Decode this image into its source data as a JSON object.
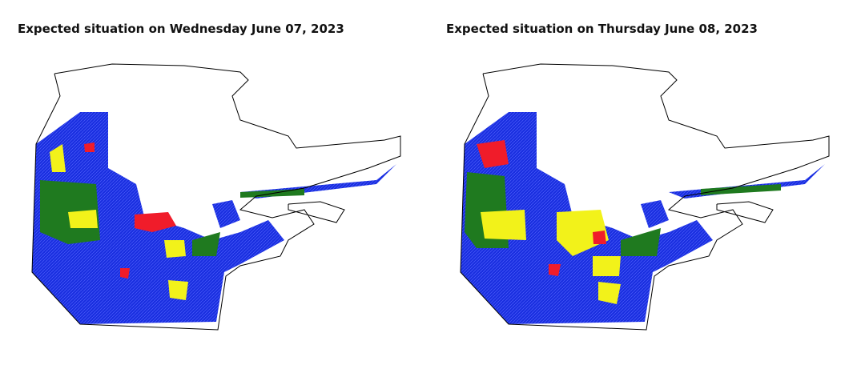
{
  "panels": [
    {
      "title": "Expected situation on Wednesday June 07, 2023"
    },
    {
      "title": "Expected situation on Thursday June 08, 2023"
    }
  ]
}
